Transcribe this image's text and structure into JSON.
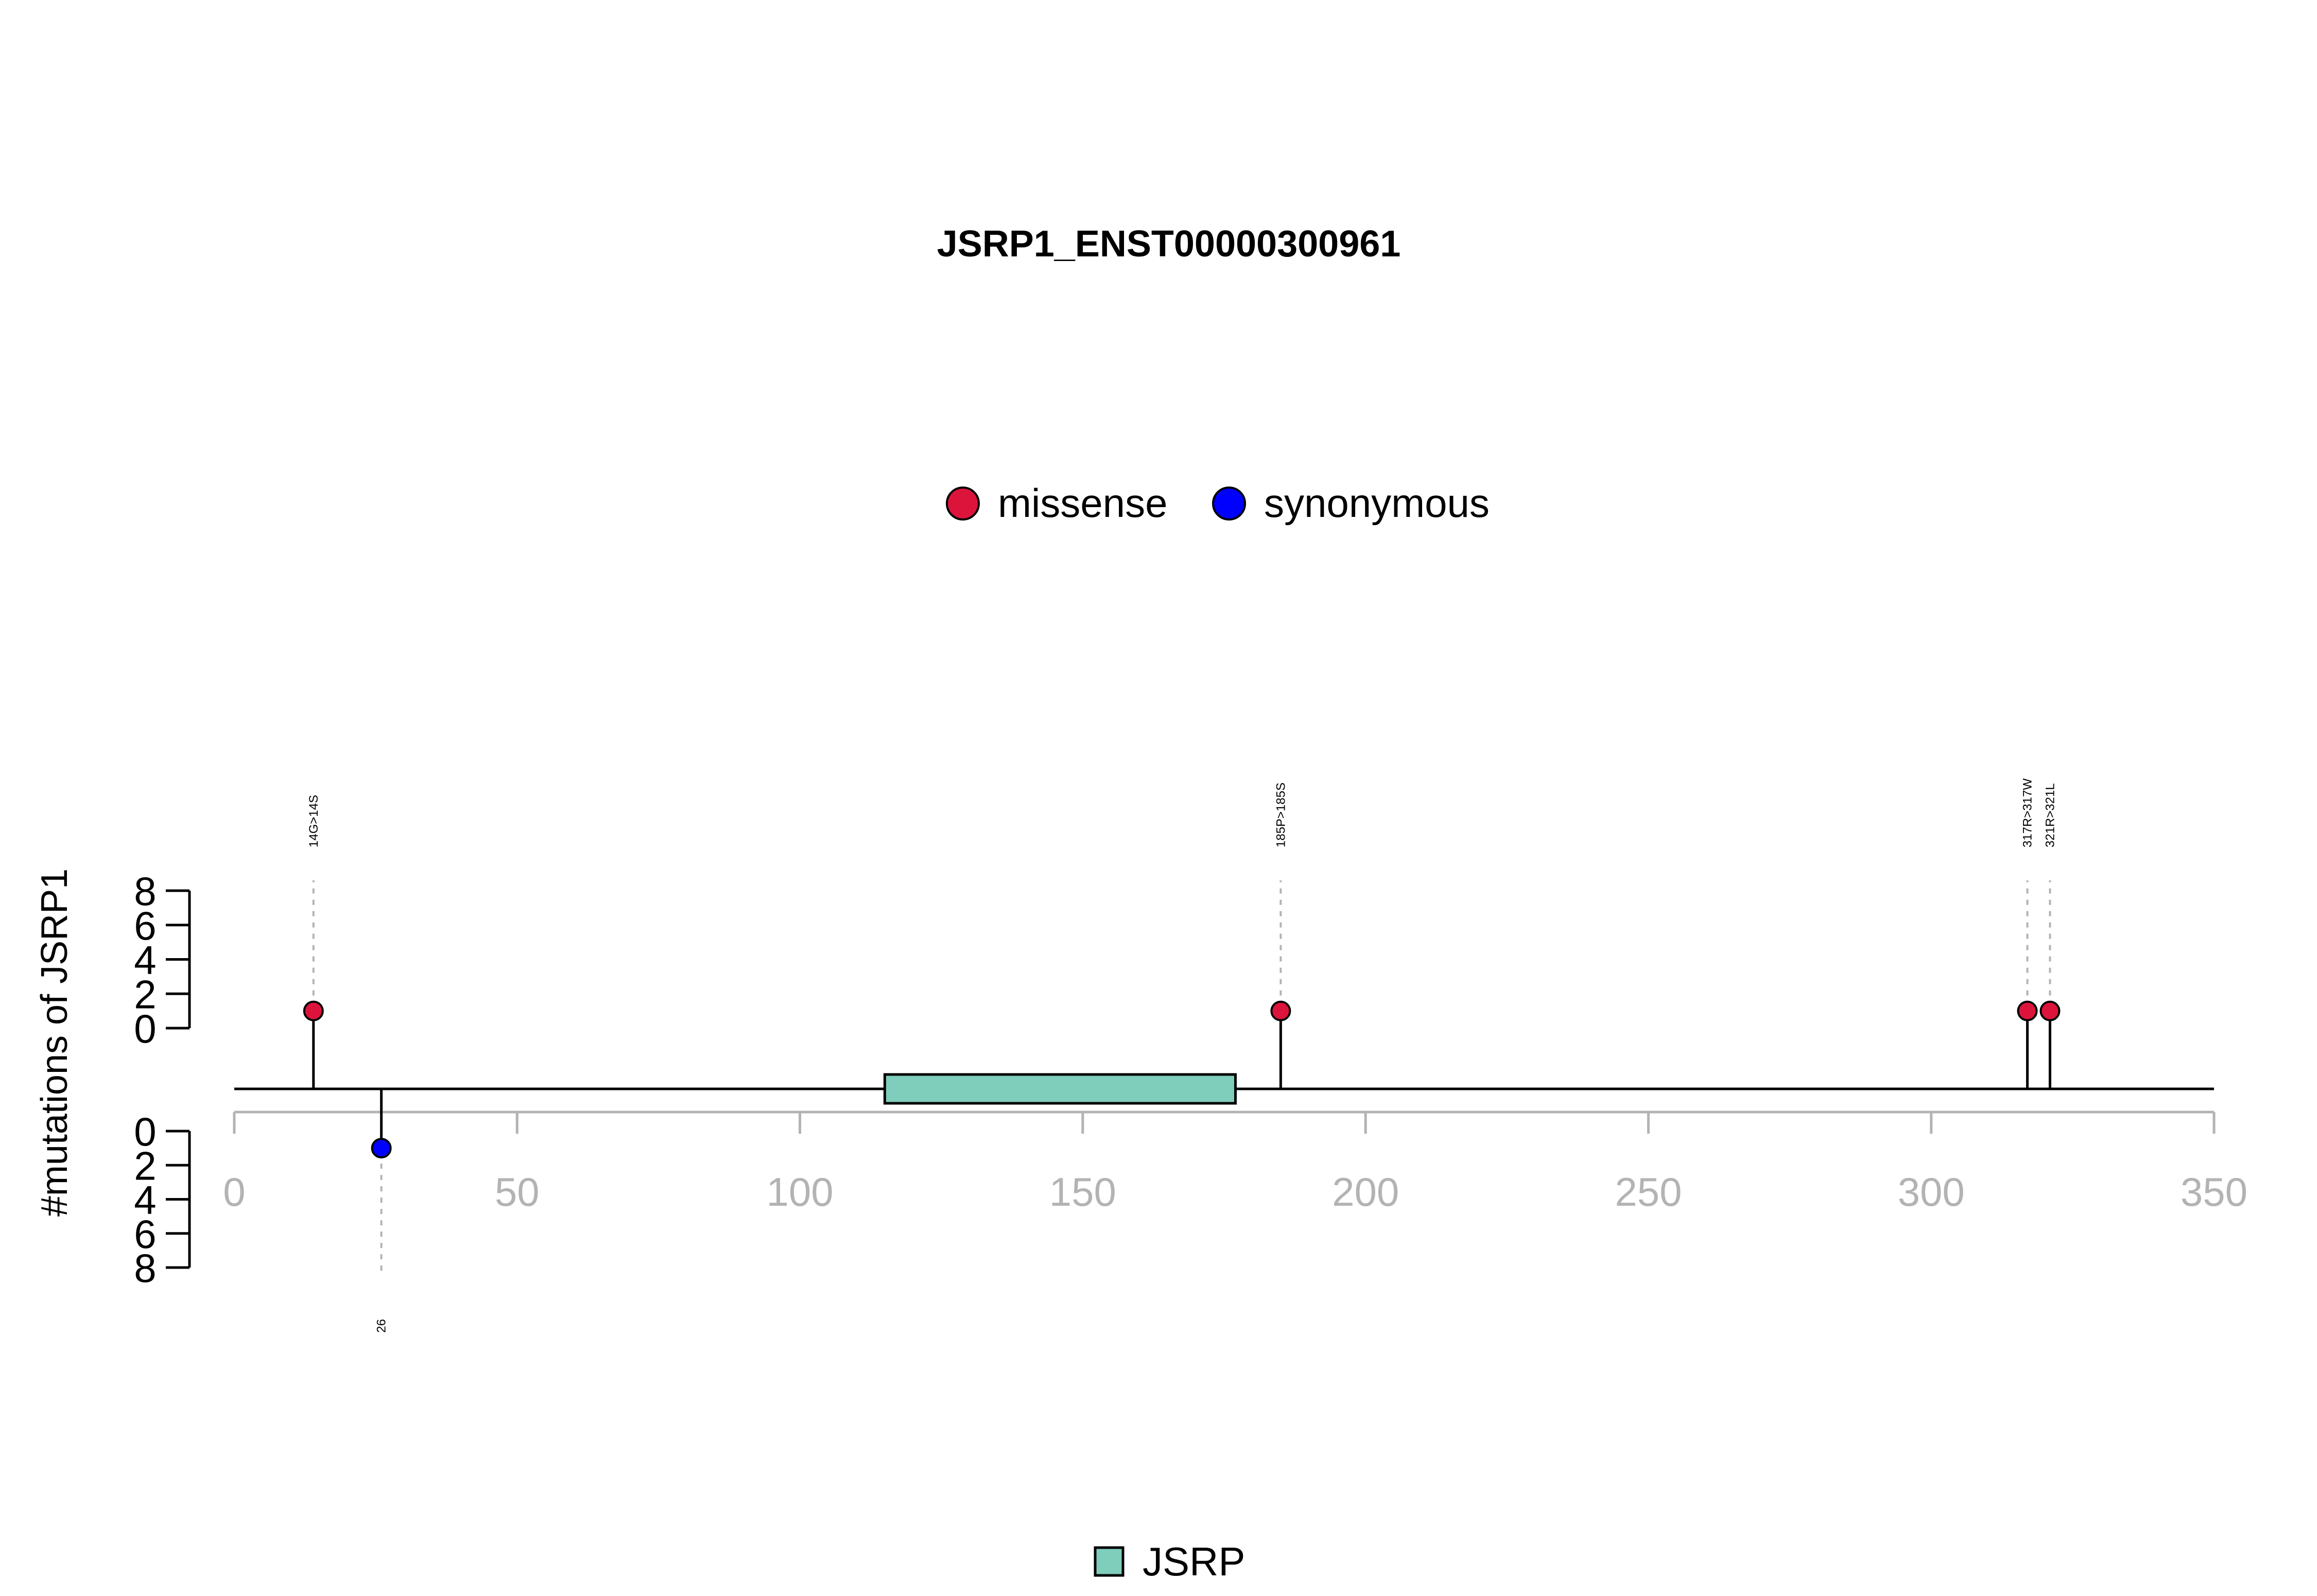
{
  "chart_data": {
    "type": "lollipop",
    "title": "JSRP1_ENST00000300961",
    "ylabel": "#mutations of JSRP1",
    "xlim": [
      0,
      350
    ],
    "x_ticks": [
      "0",
      "50",
      "100",
      "150",
      "200",
      "250",
      "300",
      "350"
    ],
    "y_ticks_top": [
      "8",
      "6",
      "4",
      "2",
      "0"
    ],
    "y_ticks_bottom": [
      "0",
      "2",
      "4",
      "6",
      "8"
    ],
    "ylim": [
      0,
      8
    ],
    "legend": [
      {
        "name": "missense",
        "color": "#dc143c"
      },
      {
        "name": "synonymous",
        "color": "#0000ff"
      }
    ],
    "domains": [
      {
        "name": "JSRP",
        "start": 115,
        "end": 177,
        "color": "#7fcdbb"
      }
    ],
    "mutations": [
      {
        "position": 14,
        "label": "14G>14S",
        "type": "missense",
        "count": 1,
        "side": "top"
      },
      {
        "position": 185,
        "label": "185P>185S",
        "type": "missense",
        "count": 1,
        "side": "top"
      },
      {
        "position": 317,
        "label": "317R>317W",
        "type": "missense",
        "count": 1,
        "side": "top"
      },
      {
        "position": 321,
        "label": "321R>321L",
        "type": "missense",
        "count": 1,
        "side": "top"
      },
      {
        "position": 26,
        "label": "26",
        "type": "synonymous",
        "count": 1,
        "side": "bottom"
      }
    ]
  }
}
